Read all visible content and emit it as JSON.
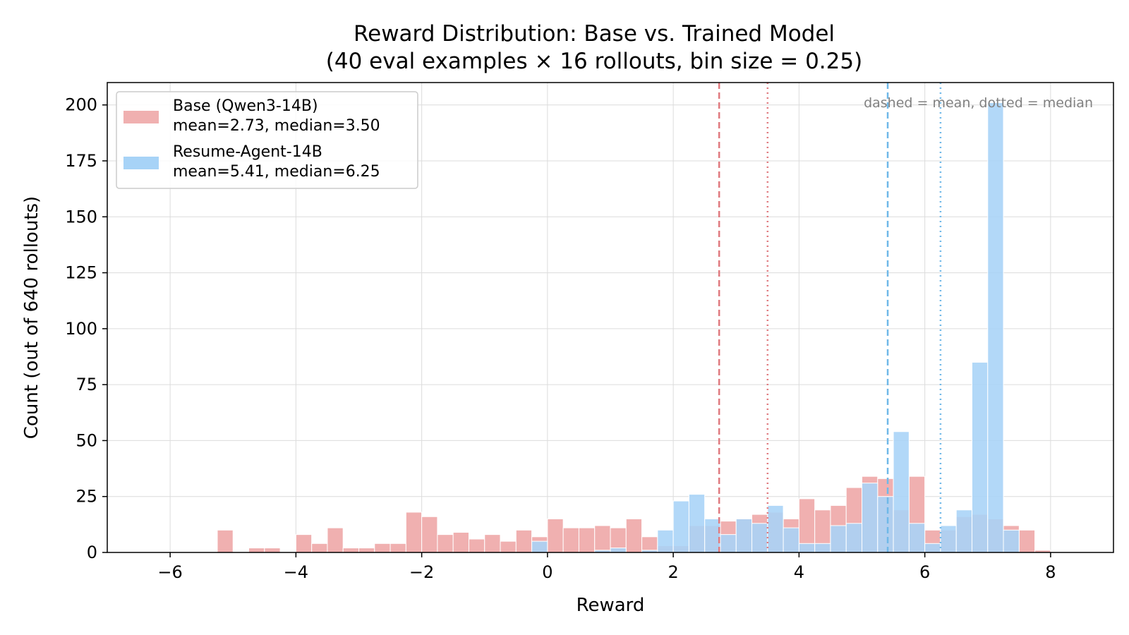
{
  "chart_data": {
    "type": "bar",
    "subtype": "overlaid-histogram",
    "title": "Reward Distribution: Base vs. Trained Model",
    "subtitle": "(40 eval examples × 16 rollouts, bin size = 0.25)",
    "xlabel": "Reward",
    "ylabel": "Count (out of 640 rollouts)",
    "xlim": [
      -7,
      9
    ],
    "ylim": [
      0,
      210
    ],
    "xticks": [
      -6,
      -4,
      -2,
      0,
      2,
      4,
      6,
      8
    ],
    "xtick_labels": [
      "−6",
      "−4",
      "−2",
      "0",
      "2",
      "4",
      "6",
      "8"
    ],
    "yticks": [
      0,
      25,
      50,
      75,
      100,
      125,
      150,
      175,
      200
    ],
    "yticks_labels": [
      "0",
      "25",
      "50",
      "75",
      "100",
      "125",
      "150",
      "175",
      "200"
    ],
    "bin_width": 0.25,
    "grid": true,
    "legend_position": "top-left",
    "annotation": "dashed = mean, dotted = median",
    "series": [
      {
        "name": "Base (Qwen3-14B)",
        "stats_label": "mean=2.73, median=3.50",
        "color": "#f0b0b0",
        "line_color": "#e07a7f",
        "mean": 2.73,
        "median": 3.5,
        "bins": [
          [
            -5.25,
            10
          ],
          [
            -4.75,
            2
          ],
          [
            -4.5,
            2
          ],
          [
            -4.0,
            8
          ],
          [
            -3.75,
            4
          ],
          [
            -3.5,
            11
          ],
          [
            -3.25,
            2
          ],
          [
            -3.0,
            2
          ],
          [
            -2.75,
            4
          ],
          [
            -2.5,
            4
          ],
          [
            -2.25,
            18
          ],
          [
            -2.0,
            16
          ],
          [
            -1.75,
            8
          ],
          [
            -1.5,
            9
          ],
          [
            -1.25,
            6
          ],
          [
            -1.0,
            8
          ],
          [
            -0.75,
            5
          ],
          [
            -0.5,
            10
          ],
          [
            -0.25,
            7
          ],
          [
            0.0,
            15
          ],
          [
            0.25,
            11
          ],
          [
            0.5,
            11
          ],
          [
            0.75,
            12
          ],
          [
            1.0,
            11
          ],
          [
            1.25,
            15
          ],
          [
            1.5,
            7
          ],
          [
            1.75,
            3
          ],
          [
            2.0,
            3
          ],
          [
            2.25,
            12
          ],
          [
            2.5,
            12
          ],
          [
            2.75,
            14
          ],
          [
            3.0,
            15
          ],
          [
            3.25,
            17
          ],
          [
            3.5,
            18
          ],
          [
            3.75,
            15
          ],
          [
            4.0,
            24
          ],
          [
            4.25,
            19
          ],
          [
            4.5,
            21
          ],
          [
            4.75,
            29
          ],
          [
            5.0,
            34
          ],
          [
            5.25,
            33
          ],
          [
            5.5,
            19
          ],
          [
            5.75,
            34
          ],
          [
            6.0,
            10
          ],
          [
            6.25,
            10
          ],
          [
            6.5,
            16
          ],
          [
            6.75,
            17
          ],
          [
            7.0,
            15
          ],
          [
            7.25,
            12
          ],
          [
            7.5,
            10
          ],
          [
            7.75,
            1
          ]
        ]
      },
      {
        "name": "Resume-Agent-14B",
        "stats_label": "mean=5.41, median=6.25",
        "color": "#a7d3f7",
        "line_color": "#6fb8e8",
        "mean": 5.41,
        "median": 6.25,
        "bins": [
          [
            -0.25,
            5
          ],
          [
            0.75,
            1
          ],
          [
            1.0,
            2
          ],
          [
            1.5,
            1
          ],
          [
            1.75,
            10
          ],
          [
            2.0,
            23
          ],
          [
            2.25,
            26
          ],
          [
            2.5,
            15
          ],
          [
            2.75,
            8
          ],
          [
            3.0,
            15
          ],
          [
            3.25,
            13
          ],
          [
            3.5,
            21
          ],
          [
            3.75,
            11
          ],
          [
            4.0,
            4
          ],
          [
            4.25,
            4
          ],
          [
            4.5,
            12
          ],
          [
            4.75,
            13
          ],
          [
            5.0,
            31
          ],
          [
            5.25,
            25
          ],
          [
            5.5,
            54
          ],
          [
            5.75,
            13
          ],
          [
            6.0,
            4
          ],
          [
            6.25,
            12
          ],
          [
            6.5,
            19
          ],
          [
            6.75,
            85
          ],
          [
            7.0,
            201
          ],
          [
            7.25,
            10
          ]
        ]
      }
    ]
  }
}
